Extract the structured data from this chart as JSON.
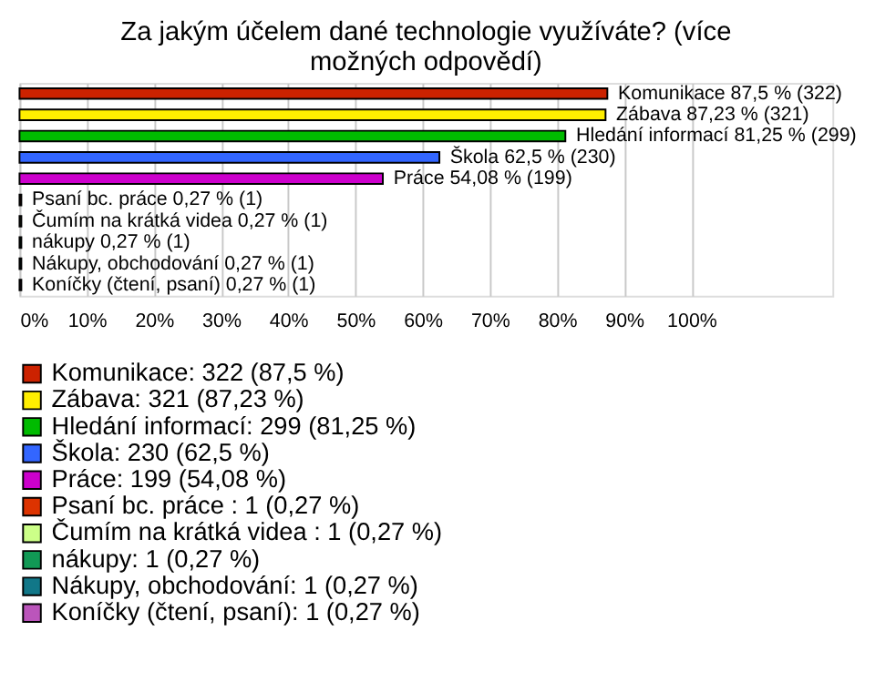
{
  "chart_data": {
    "type": "bar",
    "orientation": "horizontal",
    "title": "Za jakým účelem dané technologie využíváte? (více možných odpovědí)",
    "categories": [
      null,
      null,
      null,
      null,
      null,
      null,
      null,
      null,
      null,
      null
    ],
    "series": [
      {
        "name": "Komunikace: 322 (87,5 %)",
        "color": "#cc2200",
        "values": [
          87.5,
          null,
          null,
          null,
          null,
          null,
          null,
          null,
          null,
          null
        ],
        "value_labels": [
          "Komunikace 87,5 % (322)",
          null,
          null,
          null,
          null,
          null,
          null,
          null,
          null,
          null
        ]
      },
      {
        "name": "Zábava: 321 (87,23 %)",
        "color": "#ffee00",
        "values": [
          null,
          87.23,
          null,
          null,
          null,
          null,
          null,
          null,
          null,
          null
        ],
        "value_labels": [
          null,
          "Zábava 87,23 % (321)",
          null,
          null,
          null,
          null,
          null,
          null,
          null,
          null
        ]
      },
      {
        "name": "Hledání informací: 299 (81,25 %)",
        "color": "#00bb00",
        "values": [
          null,
          null,
          81.25,
          null,
          null,
          null,
          null,
          null,
          null,
          null
        ],
        "value_labels": [
          null,
          null,
          "Hledání informací 81,25 % (299)",
          null,
          null,
          null,
          null,
          null,
          null,
          null
        ]
      },
      {
        "name": "Škola: 230 (62,5 %)",
        "color": "#3366ff",
        "values": [
          null,
          null,
          null,
          62.5,
          null,
          null,
          null,
          null,
          null,
          null
        ],
        "value_labels": [
          null,
          null,
          null,
          "Škola 62,5 % (230)",
          null,
          null,
          null,
          null,
          null,
          null
        ]
      },
      {
        "name": "Práce: 199 (54,08 %)",
        "color": "#cc00cc",
        "values": [
          null,
          null,
          null,
          null,
          54.08,
          null,
          null,
          null,
          null,
          null
        ],
        "value_labels": [
          null,
          null,
          null,
          null,
          "Práce 54,08 % (199)",
          null,
          null,
          null,
          null,
          null
        ]
      },
      {
        "name": "Psaní bc. práce : 1 (0,27 %)",
        "color": "#dd3300",
        "values": [
          null,
          null,
          null,
          null,
          null,
          0.27,
          null,
          null,
          null,
          null
        ],
        "value_labels": [
          null,
          null,
          null,
          null,
          null,
          "Psaní bc. práce  0,27 % (1)",
          null,
          null,
          null,
          null
        ]
      },
      {
        "name": "Čumím na krátká videa : 1 (0,27 %)",
        "color": "#ccff88",
        "values": [
          null,
          null,
          null,
          null,
          null,
          null,
          0.27,
          null,
          null,
          null
        ],
        "value_labels": [
          null,
          null,
          null,
          null,
          null,
          null,
          "Čumím na krátká videa  0,27 % (1)",
          null,
          null,
          null
        ]
      },
      {
        "name": "nákupy: 1 (0,27 %)",
        "color": "#119955",
        "values": [
          null,
          null,
          null,
          null,
          null,
          null,
          null,
          0.27,
          null,
          null
        ],
        "value_labels": [
          null,
          null,
          null,
          null,
          null,
          null,
          null,
          "nákupy 0,27 % (1)",
          null,
          null
        ]
      },
      {
        "name": "Nákupy, obchodování: 1 (0,27 %)",
        "color": "#117788",
        "values": [
          null,
          null,
          null,
          null,
          null,
          null,
          null,
          null,
          0.27,
          null
        ],
        "value_labels": [
          null,
          null,
          null,
          null,
          null,
          null,
          null,
          null,
          "Nákupy, obchodování 0,27 % (1)",
          null
        ]
      },
      {
        "name": "Koníčky (čtení, psaní): 1 (0,27 %)",
        "color": "#bb55bb",
        "values": [
          null,
          null,
          null,
          null,
          null,
          null,
          null,
          null,
          null,
          0.27
        ],
        "value_labels": [
          null,
          null,
          null,
          null,
          null,
          null,
          null,
          null,
          null,
          "Koníčky (čtení, psaní) 0,27 % (1)"
        ]
      }
    ],
    "xlim": [
      0,
      121
    ],
    "xticks": [
      {
        "value": 0,
        "label": "0%"
      },
      {
        "value": 10,
        "label": "10%"
      },
      {
        "value": 20,
        "label": "20%"
      },
      {
        "value": 30,
        "label": "30%"
      },
      {
        "value": 40,
        "label": "40%"
      },
      {
        "value": 50,
        "label": "50%"
      },
      {
        "value": 60,
        "label": "60%"
      },
      {
        "value": 70,
        "label": "70%"
      },
      {
        "value": 80,
        "label": "80%"
      },
      {
        "value": 90,
        "label": "90%"
      },
      {
        "value": 100,
        "label": "100%"
      }
    ],
    "grid": "x",
    "legend": "bottom",
    "tick_labels": "x"
  }
}
